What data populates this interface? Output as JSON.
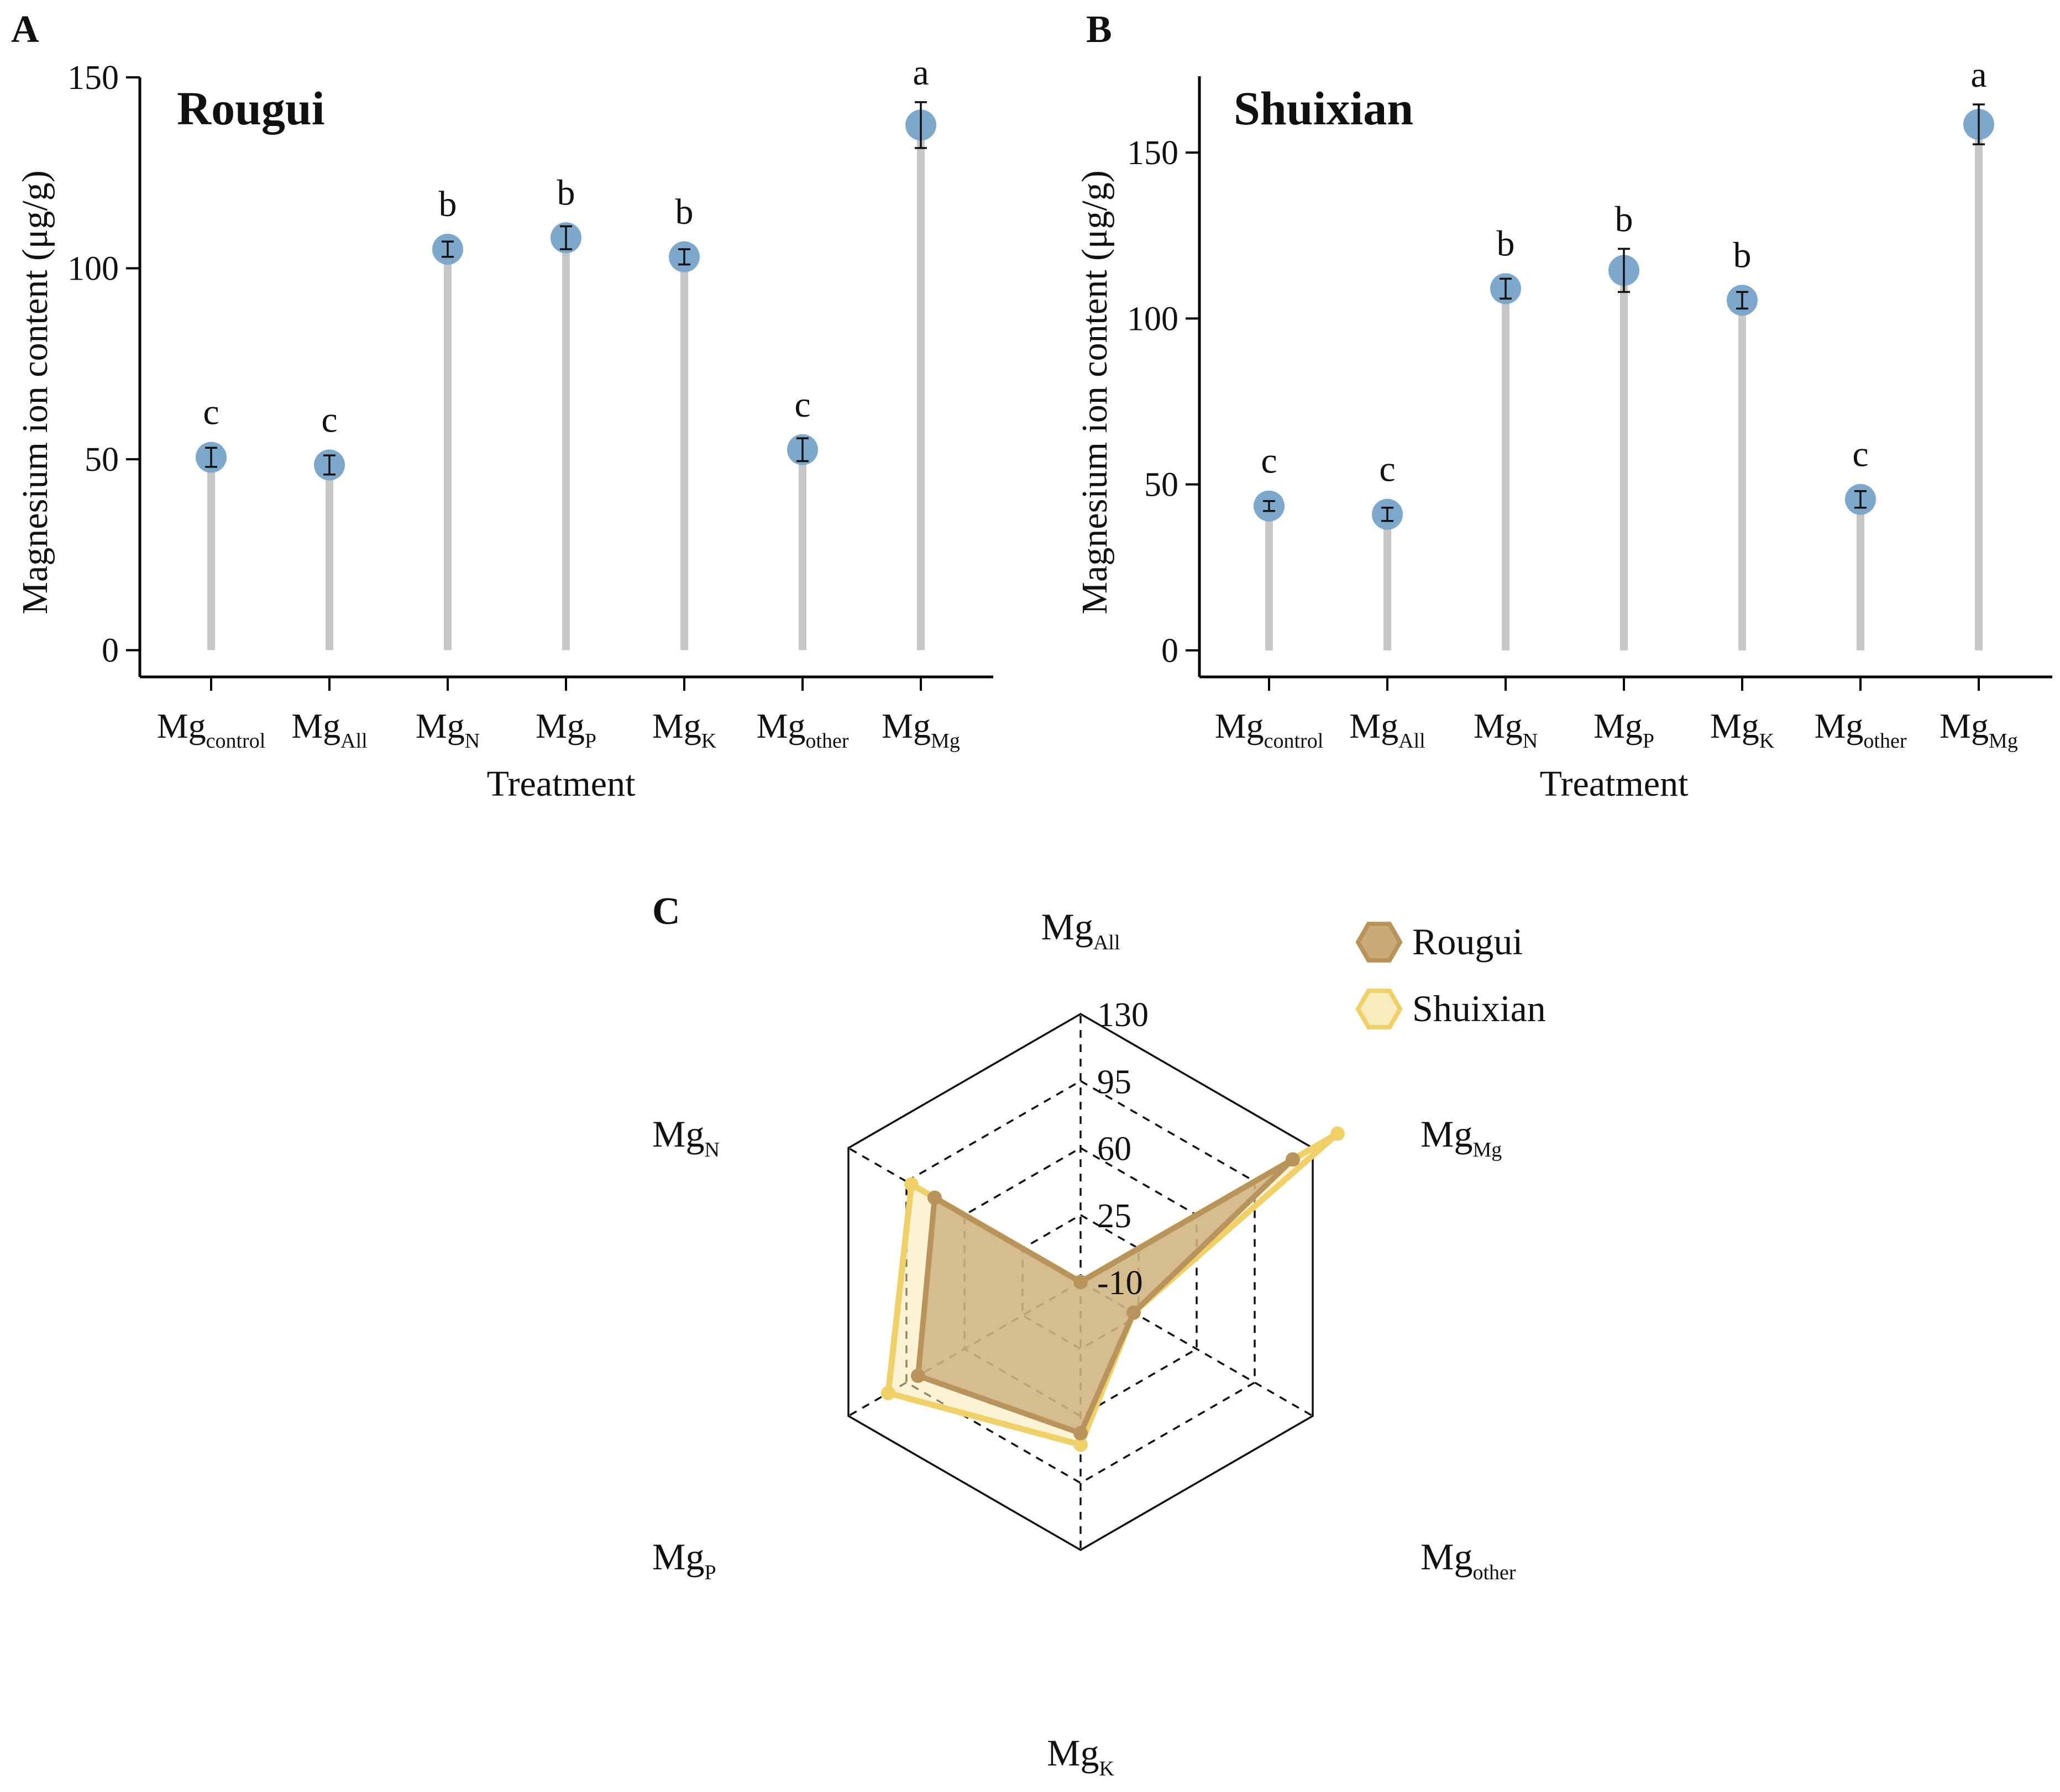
{
  "colors": {
    "lollipop_stem": "#c6c6c6",
    "lollipop_point": "#7ea8cb",
    "rougui_fill": "#c9ab78",
    "rougui_line": "#b8935b",
    "shuixian_fill": "#f7e9b0",
    "shuixian_line": "#f0d068",
    "axis": "#000000"
  },
  "chart_data": [
    {
      "panel": "A",
      "type": "lollipop",
      "title": "Rougui",
      "xlabel": "Treatment",
      "ylabel": "Magnesium ion content (μg/g)",
      "ylim": [
        -7,
        150
      ],
      "yticks": [
        "0",
        "50",
        "100",
        "150"
      ],
      "ytick_values": [
        0,
        50,
        100,
        150
      ],
      "categories": [
        {
          "main": "Mg",
          "sub": "control"
        },
        {
          "main": "Mg",
          "sub": "All"
        },
        {
          "main": "Mg",
          "sub": "N"
        },
        {
          "main": "Mg",
          "sub": "P"
        },
        {
          "main": "Mg",
          "sub": "K"
        },
        {
          "main": "Mg",
          "sub": "other"
        },
        {
          "main": "Mg",
          "sub": "Mg"
        }
      ],
      "values": [
        50.5,
        48.5,
        105,
        108,
        103,
        52.5,
        137.5
      ],
      "errors": [
        2.5,
        2.5,
        2,
        3,
        2,
        3,
        6
      ],
      "significance": [
        "c",
        "c",
        "b",
        "b",
        "b",
        "c",
        "a"
      ]
    },
    {
      "panel": "B",
      "type": "lollipop",
      "title": "Shuixian",
      "xlabel": "Treatment",
      "ylabel": "Magnesium ion content (μg/g)",
      "ylim": [
        -8,
        173
      ],
      "yticks": [
        "0",
        "50",
        "100",
        "150"
      ],
      "ytick_values": [
        0,
        50,
        100,
        150
      ],
      "categories": [
        {
          "main": "Mg",
          "sub": "control"
        },
        {
          "main": "Mg",
          "sub": "All"
        },
        {
          "main": "Mg",
          "sub": "N"
        },
        {
          "main": "Mg",
          "sub": "P"
        },
        {
          "main": "Mg",
          "sub": "K"
        },
        {
          "main": "Mg",
          "sub": "other"
        },
        {
          "main": "Mg",
          "sub": "Mg"
        }
      ],
      "values": [
        43.5,
        41,
        109,
        114.5,
        105.5,
        45.5,
        158.5
      ],
      "errors": [
        1.5,
        2,
        3,
        6.5,
        2.5,
        2.5,
        6
      ],
      "significance": [
        "c",
        "c",
        "b",
        "b",
        "b",
        "c",
        "a"
      ]
    },
    {
      "panel": "C",
      "type": "radar",
      "axes": [
        {
          "main": "Mg",
          "sub": "All"
        },
        {
          "main": "Mg",
          "sub": "Mg"
        },
        {
          "main": "Mg",
          "sub": "other"
        },
        {
          "main": "Mg",
          "sub": "K"
        },
        {
          "main": "Mg",
          "sub": "P"
        },
        {
          "main": "Mg",
          "sub": "N"
        }
      ],
      "range": [
        -10,
        130
      ],
      "rings": [
        "-10",
        "25",
        "60",
        "95",
        "130"
      ],
      "ring_values": [
        -10,
        25,
        60,
        95,
        130
      ],
      "series": [
        {
          "name": "Rougui",
          "values": [
            -10,
            118,
            22,
            69,
            88,
            78
          ]
        },
        {
          "name": "Shuixian",
          "values": [
            -10,
            145,
            22,
            75,
            106,
            92
          ]
        }
      ],
      "legend": [
        "Rougui",
        "Shuixian"
      ]
    }
  ]
}
